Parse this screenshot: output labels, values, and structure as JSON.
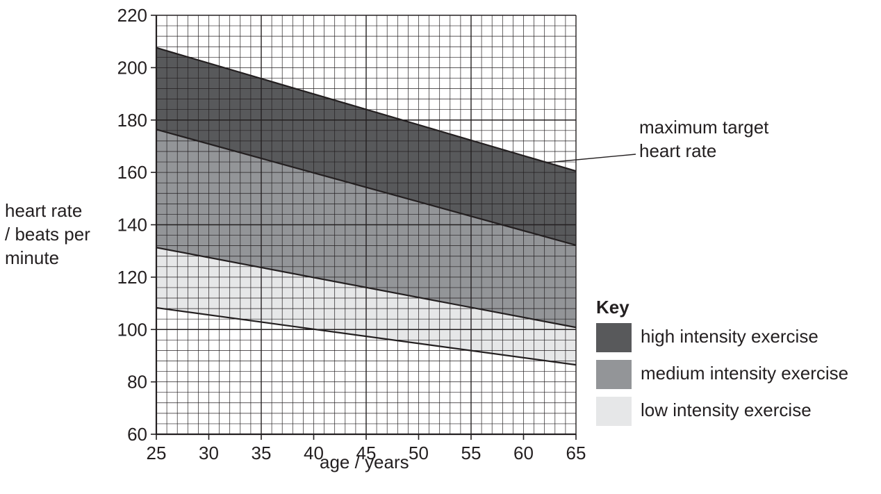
{
  "chart_data": {
    "type": "area",
    "xlabel": "age / years",
    "ylabel": [
      "heart rate",
      "/ beats per",
      "minute"
    ],
    "xlim": [
      25,
      65
    ],
    "ylim": [
      60,
      220
    ],
    "xticks": [
      25,
      30,
      35,
      40,
      45,
      50,
      55,
      60,
      65
    ],
    "yticks": [
      60,
      80,
      100,
      120,
      140,
      160,
      180,
      200,
      220
    ],
    "grid": true,
    "boundaries": [
      {
        "x": [
          25,
          65
        ],
        "y": [
          207.6,
          160.5
        ]
      },
      {
        "x": [
          25,
          65
        ],
        "y": [
          176.4,
          132.2
        ]
      },
      {
        "x": [
          25,
          65
        ],
        "y": [
          131.3,
          100.8
        ]
      },
      {
        "x": [
          25,
          65
        ],
        "y": [
          108.3,
          86.5
        ]
      }
    ],
    "series": [
      {
        "name": "high intensity exercise",
        "color": "#58595b",
        "lower": [
          176.4,
          132.2
        ],
        "upper": [
          207.6,
          160.5
        ]
      },
      {
        "name": "medium intensity exercise",
        "color": "#939598",
        "lower": [
          131.3,
          100.8
        ],
        "upper": [
          176.4,
          132.2
        ]
      },
      {
        "name": "low intensity exercise",
        "color": "#e6e7e8",
        "lower": [
          108.3,
          86.5
        ],
        "upper": [
          131.3,
          100.8
        ]
      }
    ],
    "annotation": [
      "maximum target",
      "heart rate"
    ],
    "legend": {
      "title": "Key",
      "position": "right"
    }
  }
}
